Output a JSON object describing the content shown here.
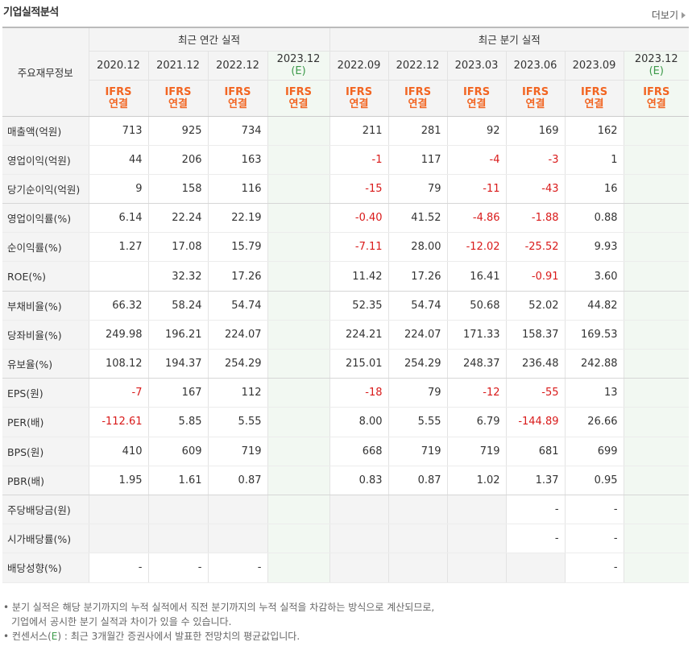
{
  "title": "기업실적분석",
  "more_label": "더보기",
  "header": {
    "label_col": "주요재무정보",
    "annual_group": "최근 연간 실적",
    "quarter_group": "최근 분기 실적",
    "annual_periods": [
      {
        "period": "2020.12",
        "est": "",
        "ifrs": "IFRS",
        "basis": "연결"
      },
      {
        "period": "2021.12",
        "est": "",
        "ifrs": "IFRS",
        "basis": "연결"
      },
      {
        "period": "2022.12",
        "est": "",
        "ifrs": "IFRS",
        "basis": "연결"
      },
      {
        "period": "2023.12",
        "est": "(E)",
        "ifrs": "IFRS",
        "basis": "연결"
      }
    ],
    "quarter_periods": [
      {
        "period": "2022.09",
        "est": "",
        "ifrs": "IFRS",
        "basis": "연결"
      },
      {
        "period": "2022.12",
        "est": "",
        "ifrs": "IFRS",
        "basis": "연결"
      },
      {
        "period": "2023.03",
        "est": "",
        "ifrs": "IFRS",
        "basis": "연결"
      },
      {
        "period": "2023.06",
        "est": "",
        "ifrs": "IFRS",
        "basis": "연결"
      },
      {
        "period": "2023.09",
        "est": "",
        "ifrs": "IFRS",
        "basis": "연결"
      },
      {
        "period": "2023.12",
        "est": "(E)",
        "ifrs": "IFRS",
        "basis": "연결"
      }
    ]
  },
  "rows": [
    {
      "label": "매출액(억원)",
      "values": [
        "713",
        "925",
        "734",
        "",
        "211",
        "281",
        "92",
        "169",
        "162",
        ""
      ]
    },
    {
      "label": "영업이익(억원)",
      "values": [
        "44",
        "206",
        "163",
        "",
        "-1",
        "117",
        "-4",
        "-3",
        "1",
        ""
      ]
    },
    {
      "label": "당기순이익(억원)",
      "values": [
        "9",
        "158",
        "116",
        "",
        "-15",
        "79",
        "-11",
        "-43",
        "16",
        ""
      ]
    },
    {
      "label": "영업이익률(%)",
      "values": [
        "6.14",
        "22.24",
        "22.19",
        "",
        "-0.40",
        "41.52",
        "-4.86",
        "-1.88",
        "0.88",
        ""
      ]
    },
    {
      "label": "순이익률(%)",
      "values": [
        "1.27",
        "17.08",
        "15.79",
        "",
        "-7.11",
        "28.00",
        "-12.02",
        "-25.52",
        "9.93",
        ""
      ]
    },
    {
      "label": "ROE(%)",
      "values": [
        "",
        "32.32",
        "17.26",
        "",
        "11.42",
        "17.26",
        "16.41",
        "-0.91",
        "3.60",
        ""
      ]
    },
    {
      "label": "부채비율(%)",
      "values": [
        "66.32",
        "58.24",
        "54.74",
        "",
        "52.35",
        "54.74",
        "50.68",
        "52.02",
        "44.82",
        ""
      ]
    },
    {
      "label": "당좌비율(%)",
      "values": [
        "249.98",
        "196.21",
        "224.07",
        "",
        "224.21",
        "224.07",
        "171.33",
        "158.37",
        "169.53",
        ""
      ]
    },
    {
      "label": "유보율(%)",
      "values": [
        "108.12",
        "194.37",
        "254.29",
        "",
        "215.01",
        "254.29",
        "248.37",
        "236.48",
        "242.88",
        ""
      ]
    },
    {
      "label": "EPS(원)",
      "values": [
        "-7",
        "167",
        "112",
        "",
        "-18",
        "79",
        "-12",
        "-55",
        "13",
        ""
      ]
    },
    {
      "label": "PER(배)",
      "values": [
        "-112.61",
        "5.85",
        "5.55",
        "",
        "8.00",
        "5.55",
        "6.79",
        "-144.89",
        "26.66",
        ""
      ]
    },
    {
      "label": "BPS(원)",
      "values": [
        "410",
        "609",
        "719",
        "",
        "668",
        "719",
        "719",
        "681",
        "699",
        ""
      ]
    },
    {
      "label": "PBR(배)",
      "values": [
        "1.95",
        "1.61",
        "0.87",
        "",
        "0.83",
        "0.87",
        "1.02",
        "1.37",
        "0.95",
        ""
      ]
    },
    {
      "label": "주당배당금(원)",
      "values": [
        "",
        "",
        "",
        "",
        "",
        "",
        "",
        "-",
        "-",
        ""
      ]
    },
    {
      "label": "시가배당률(%)",
      "values": [
        "",
        "",
        "",
        "",
        "",
        "",
        "",
        "-",
        "-",
        ""
      ]
    },
    {
      "label": "배당성향(%)",
      "values": [
        "-",
        "-",
        "-",
        "",
        "",
        "",
        "",
        "",
        "-",
        ""
      ]
    }
  ],
  "notes": {
    "line1": "분기 실적은 해당 분기까지의 누적 실적에서 직전 분기까지의 누적 실적을 차감하는 방식으로 계산되므로,",
    "line2": "기업에서 공시한 분기 실적과 차이가 있을 수 있습니다.",
    "line3_prefix": "컨센서스(",
    "line3_e": "E",
    "line3_suffix": ") : 최근 3개월간 증권사에서 발표한 전망치의 평균값입니다."
  },
  "colors": {
    "ifrs_orange": "#f26522",
    "estimate_green": "#3d9a4a",
    "negative_red": "#d91a1a"
  }
}
